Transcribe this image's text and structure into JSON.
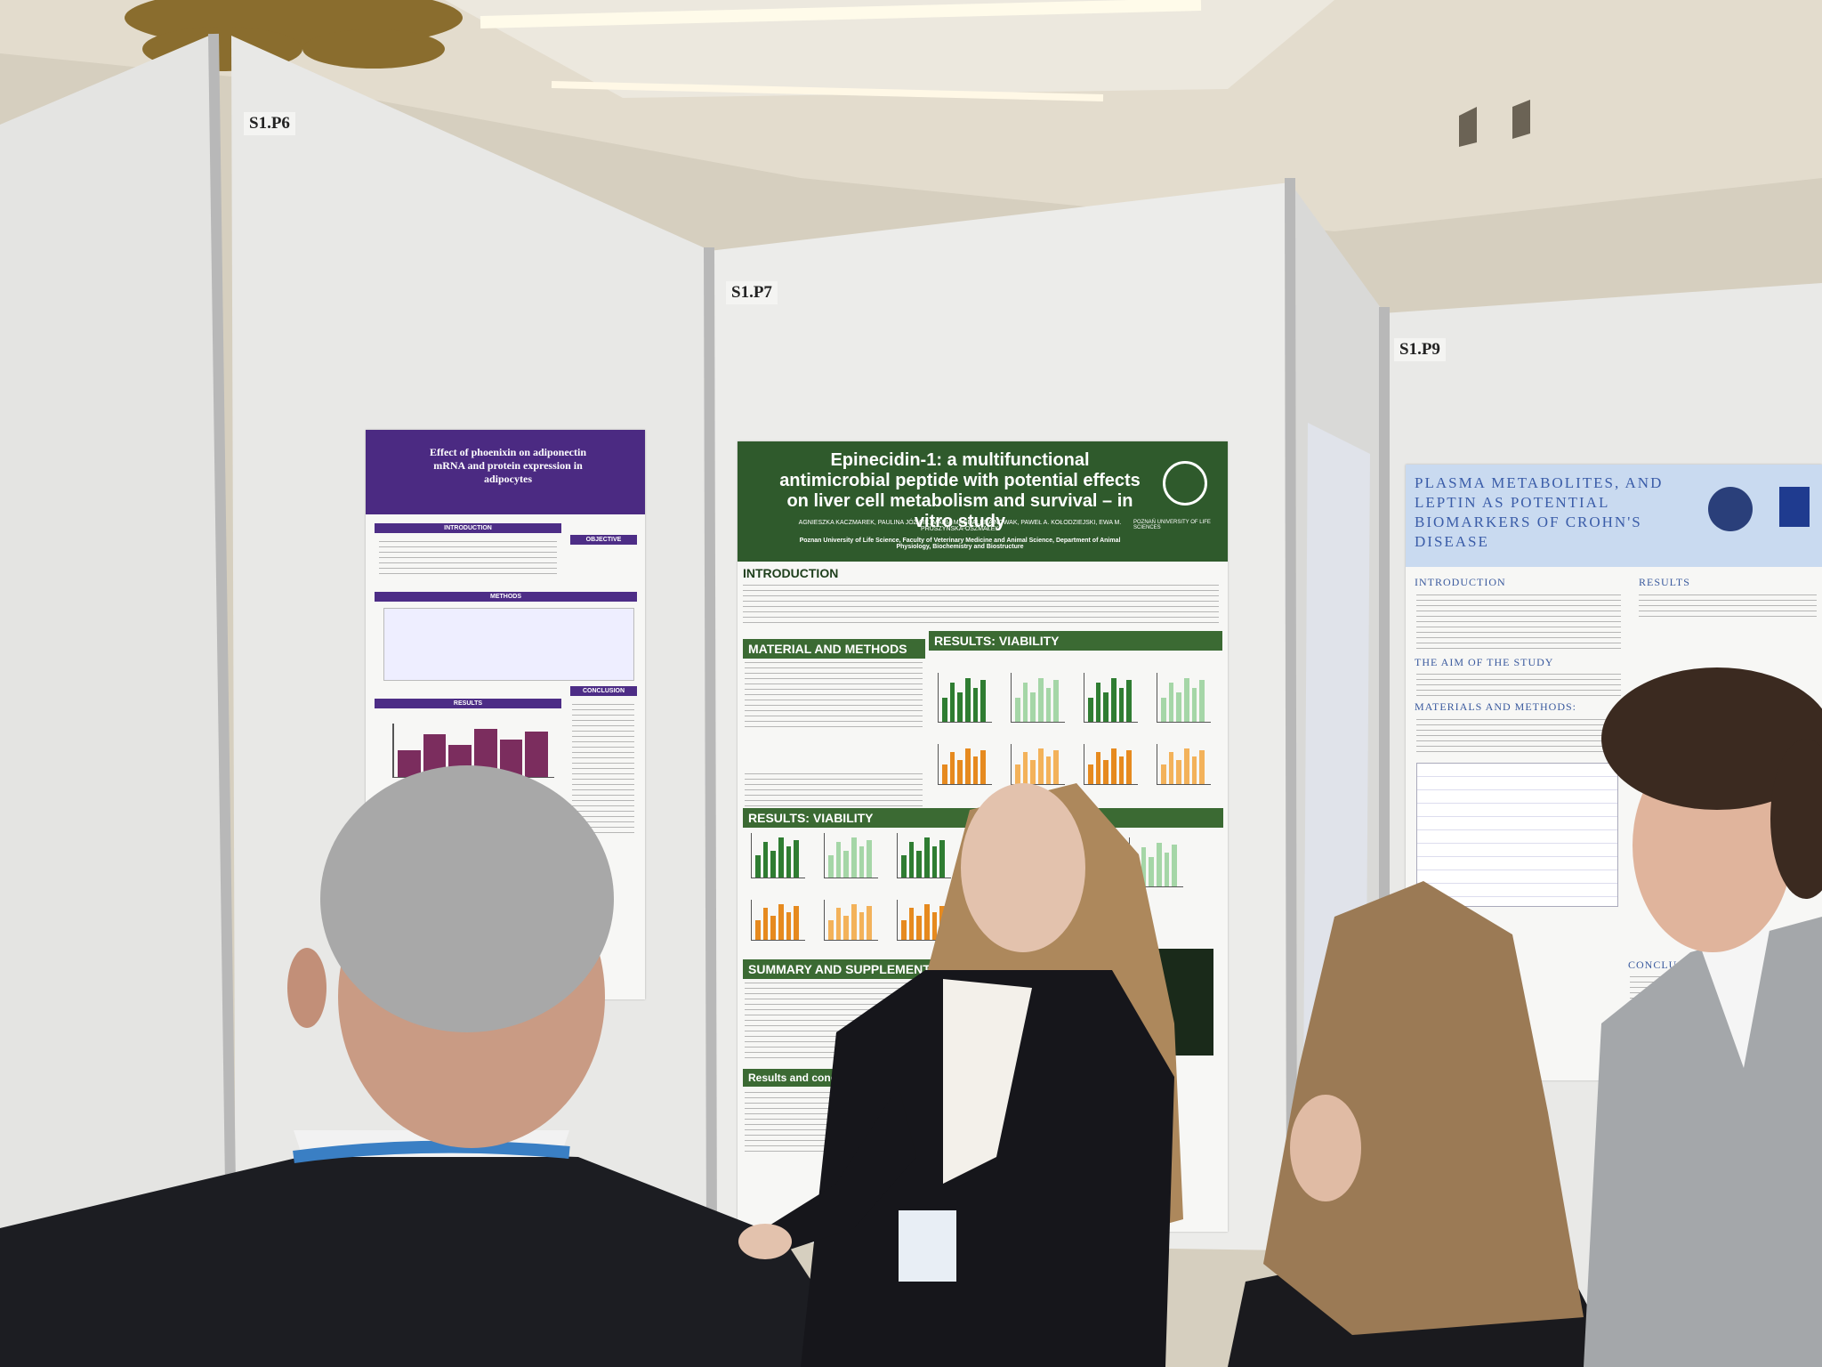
{
  "boards": [
    {
      "label": "S1.P6"
    },
    {
      "label": "S1.P7"
    },
    {
      "label": "S1.P9"
    }
  ],
  "posters": [
    {
      "title": "Effect of phoenixin on adiponectin mRNA and protein expression in adipocytes",
      "sections": [
        "INTRODUCTION",
        "OBJECTIVE",
        "METHODS",
        "RESULTS",
        "CONCLUSION"
      ]
    },
    {
      "title": "Epinecidin-1: a multifunctional antimicrobial peptide with potential effects on liver cell metabolism and survival – in vitro study",
      "authors": "AGNIESZKA KACZMAREK, PAULINA JÓŹWIK, MARIA MAGDALENA NOWAK, PAWEŁ A. KOŁODZIEJSKI, EWA M. PRUSZYŃSKA-OSZMAŁEK",
      "affiliation": "Poznan University of Life Science, Faculty of Veterinary Medicine and Animal Science, Department of Animal Physiology, Biochemistry and Biostructure",
      "logo": "POZNAŃ UNIVERSITY OF LIFE SCIENCES",
      "sections": [
        "INTRODUCTION",
        "MATERIAL AND METHODS",
        "RESULTS: VIABILITY",
        "RESULTS: VIABILITY",
        "SUMMARY AND SUPPLEMENTAL",
        "Results and conclusions"
      ]
    },
    {
      "title": "PLASMA METABOLITES, AND LEPTIN AS POTENTIAL BIOMARKERS OF CROHN'S DISEASE",
      "sections": [
        "INTRODUCTION",
        "THE AIM OF THE STUDY",
        "MATERIALS AND METHODS:",
        "RESULTS",
        "CONCLUSION"
      ]
    }
  ]
}
